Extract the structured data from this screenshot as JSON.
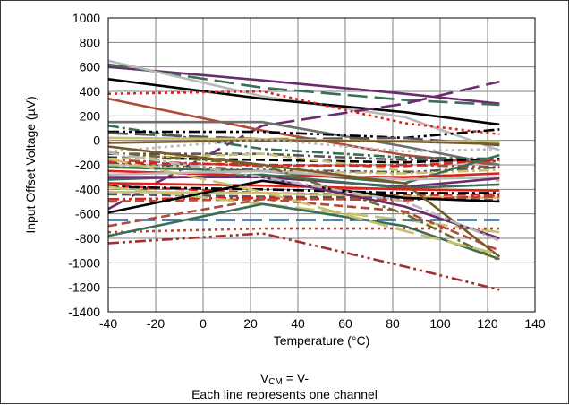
{
  "chart_data": {
    "type": "line",
    "title": "",
    "xlabel": "Temperature (°C)",
    "ylabel": "Input Offset Voltage (µV)",
    "xlim": [
      -40,
      140
    ],
    "ylim": [
      -1400,
      1000
    ],
    "x_ticks": [
      "-40",
      "-20",
      "0",
      "20",
      "40",
      "60",
      "80",
      "100",
      "120",
      "140"
    ],
    "y_ticks": [
      "1000",
      "800",
      "600",
      "400",
      "200",
      "0",
      "-200",
      "-400",
      "-600",
      "-800",
      "-1000",
      "-1200",
      "-1400"
    ],
    "x": [
      -40,
      25,
      85,
      125
    ],
    "grid": true,
    "legend": "none",
    "series": [
      {
        "values": [
          600,
          490,
          380,
          300
        ],
        "color": "#6b2c6e",
        "dash": "solid"
      },
      {
        "values": [
          620,
          430,
          330,
          290
        ],
        "color": "#3b6e55",
        "dash": "longdash"
      },
      {
        "values": [
          650,
          360,
          190,
          -80
        ],
        "color": "#b8b8b8",
        "dash": "solid"
      },
      {
        "values": [
          500,
          340,
          230,
          130
        ],
        "color": "#000000",
        "dash": "solid"
      },
      {
        "values": [
          -560,
          120,
          300,
          480
        ],
        "color": "#6b2c6e",
        "dash": "longdash"
      },
      {
        "values": [
          380,
          400,
          140,
          50
        ],
        "color": "#e0201b",
        "dash": "dot"
      },
      {
        "values": [
          340,
          80,
          -120,
          -200
        ],
        "color": "#b04a3a",
        "dash": "solid"
      },
      {
        "values": [
          150,
          150,
          -50,
          -200
        ],
        "color": "#6e6e6e",
        "dash": "solid"
      },
      {
        "values": [
          120,
          -70,
          -140,
          -150
        ],
        "color": "#3b6e55",
        "dash": "dashdot"
      },
      {
        "values": [
          70,
          70,
          20,
          90
        ],
        "color": "#000000",
        "dash": "dashdotdot"
      },
      {
        "values": [
          60,
          10,
          20,
          -40
        ],
        "color": "#555555",
        "dash": "longdash"
      },
      {
        "values": [
          20,
          10,
          -10,
          -10
        ],
        "color": "#c8c070",
        "dash": "solid"
      },
      {
        "values": [
          -20,
          0,
          -10,
          -30
        ],
        "color": "#7a5a2a",
        "dash": "solid"
      },
      {
        "values": [
          -90,
          10,
          -90,
          -70
        ],
        "color": "#b8b8b8",
        "dash": "dot"
      },
      {
        "values": [
          -110,
          -110,
          -160,
          -170
        ],
        "color": "#555555",
        "dash": "dashdot"
      },
      {
        "values": [
          -140,
          -160,
          -180,
          -150
        ],
        "color": "#000000",
        "dash": "dash"
      },
      {
        "values": [
          -150,
          -110,
          -250,
          -330
        ],
        "color": "#c8c070",
        "dash": "dash"
      },
      {
        "values": [
          -160,
          -210,
          -200,
          -220
        ],
        "color": "#b04a3a",
        "dash": "dashdot"
      },
      {
        "values": [
          -180,
          -200,
          -210,
          -160
        ],
        "color": "#e0201b",
        "dash": "dash"
      },
      {
        "values": [
          -190,
          -240,
          -260,
          -220
        ],
        "color": "#555555",
        "dash": "dashdotdot"
      },
      {
        "values": [
          -200,
          -250,
          -270,
          -240
        ],
        "color": "#c8c070",
        "dash": "dashdot"
      },
      {
        "values": [
          -220,
          -250,
          -350,
          -120
        ],
        "color": "#3b6e55",
        "dash": "solid"
      },
      {
        "values": [
          -250,
          -290,
          -300,
          -270
        ],
        "color": "#e0201b",
        "dash": "solid"
      },
      {
        "values": [
          -280,
          -250,
          -320,
          -300
        ],
        "color": "#b8b8b8",
        "dash": "solid"
      },
      {
        "values": [
          -300,
          -300,
          -380,
          -310
        ],
        "color": "#6b2c6e",
        "dash": "solid"
      },
      {
        "values": [
          -320,
          -280,
          -390,
          -360
        ],
        "color": "#3b6e55",
        "dash": "solid"
      },
      {
        "values": [
          -350,
          -370,
          -400,
          -410
        ],
        "color": "#e0201b",
        "dash": "solid"
      },
      {
        "values": [
          -370,
          -430,
          -450,
          -440
        ],
        "color": "#e0201b",
        "dash": "dash"
      },
      {
        "values": [
          -380,
          -400,
          -430,
          -430
        ],
        "color": "#000000",
        "dash": "dashdot"
      },
      {
        "values": [
          -420,
          -430,
          -460,
          -470
        ],
        "color": "#c8c070",
        "dash": "solid"
      },
      {
        "values": [
          -440,
          -460,
          -470,
          -490
        ],
        "color": "#555555",
        "dash": "dash"
      },
      {
        "values": [
          -480,
          -470,
          -490,
          -450
        ],
        "color": "#e0201b",
        "dash": "dashdotdot"
      },
      {
        "values": [
          -500,
          -480,
          -480,
          -460
        ],
        "color": "#b04a3a",
        "dash": "dash"
      },
      {
        "values": [
          -380,
          -520,
          -650,
          -750
        ],
        "color": "#c8c070",
        "dash": "longdash"
      },
      {
        "values": [
          -590,
          -330,
          -470,
          -500
        ],
        "color": "#000000",
        "dash": "solid"
      },
      {
        "values": [
          -650,
          -650,
          -650,
          -650
        ],
        "color": "#2e5a7a",
        "dash": "longdash"
      },
      {
        "values": [
          -700,
          -480,
          -580,
          -900
        ],
        "color": "#b04a3a",
        "dash": "dash"
      },
      {
        "values": [
          -750,
          -720,
          -720,
          -720
        ],
        "color": "#b04a3a",
        "dash": "dot"
      },
      {
        "values": [
          -780,
          -520,
          -700,
          -970
        ],
        "color": "#3b6e55",
        "dash": "solid"
      },
      {
        "values": [
          -840,
          -760,
          -1030,
          -1220
        ],
        "color": "#a03030",
        "dash": "dashdotdot"
      },
      {
        "values": [
          -100,
          -200,
          -600,
          -980
        ],
        "color": "#6b6b2a",
        "dash": "dashdot"
      },
      {
        "values": [
          -50,
          -200,
          -350,
          -950
        ],
        "color": "#7a5a2a",
        "dash": "solid"
      },
      {
        "values": [
          -300,
          -300,
          -540,
          -800
        ],
        "color": "#6b2c6e",
        "dash": "solid"
      },
      {
        "values": [
          -150,
          -420,
          -740,
          -930
        ],
        "color": "#c8c070",
        "dash": "longdash"
      },
      {
        "values": [
          -100,
          -300,
          -500,
          -820
        ],
        "color": "#b8b8b8",
        "dash": "dashdot"
      }
    ]
  },
  "caption": {
    "line1_prefix": "V",
    "line1_sub": "CM",
    "line1_suffix": " = V-",
    "line2": "Each line represents one channel"
  }
}
